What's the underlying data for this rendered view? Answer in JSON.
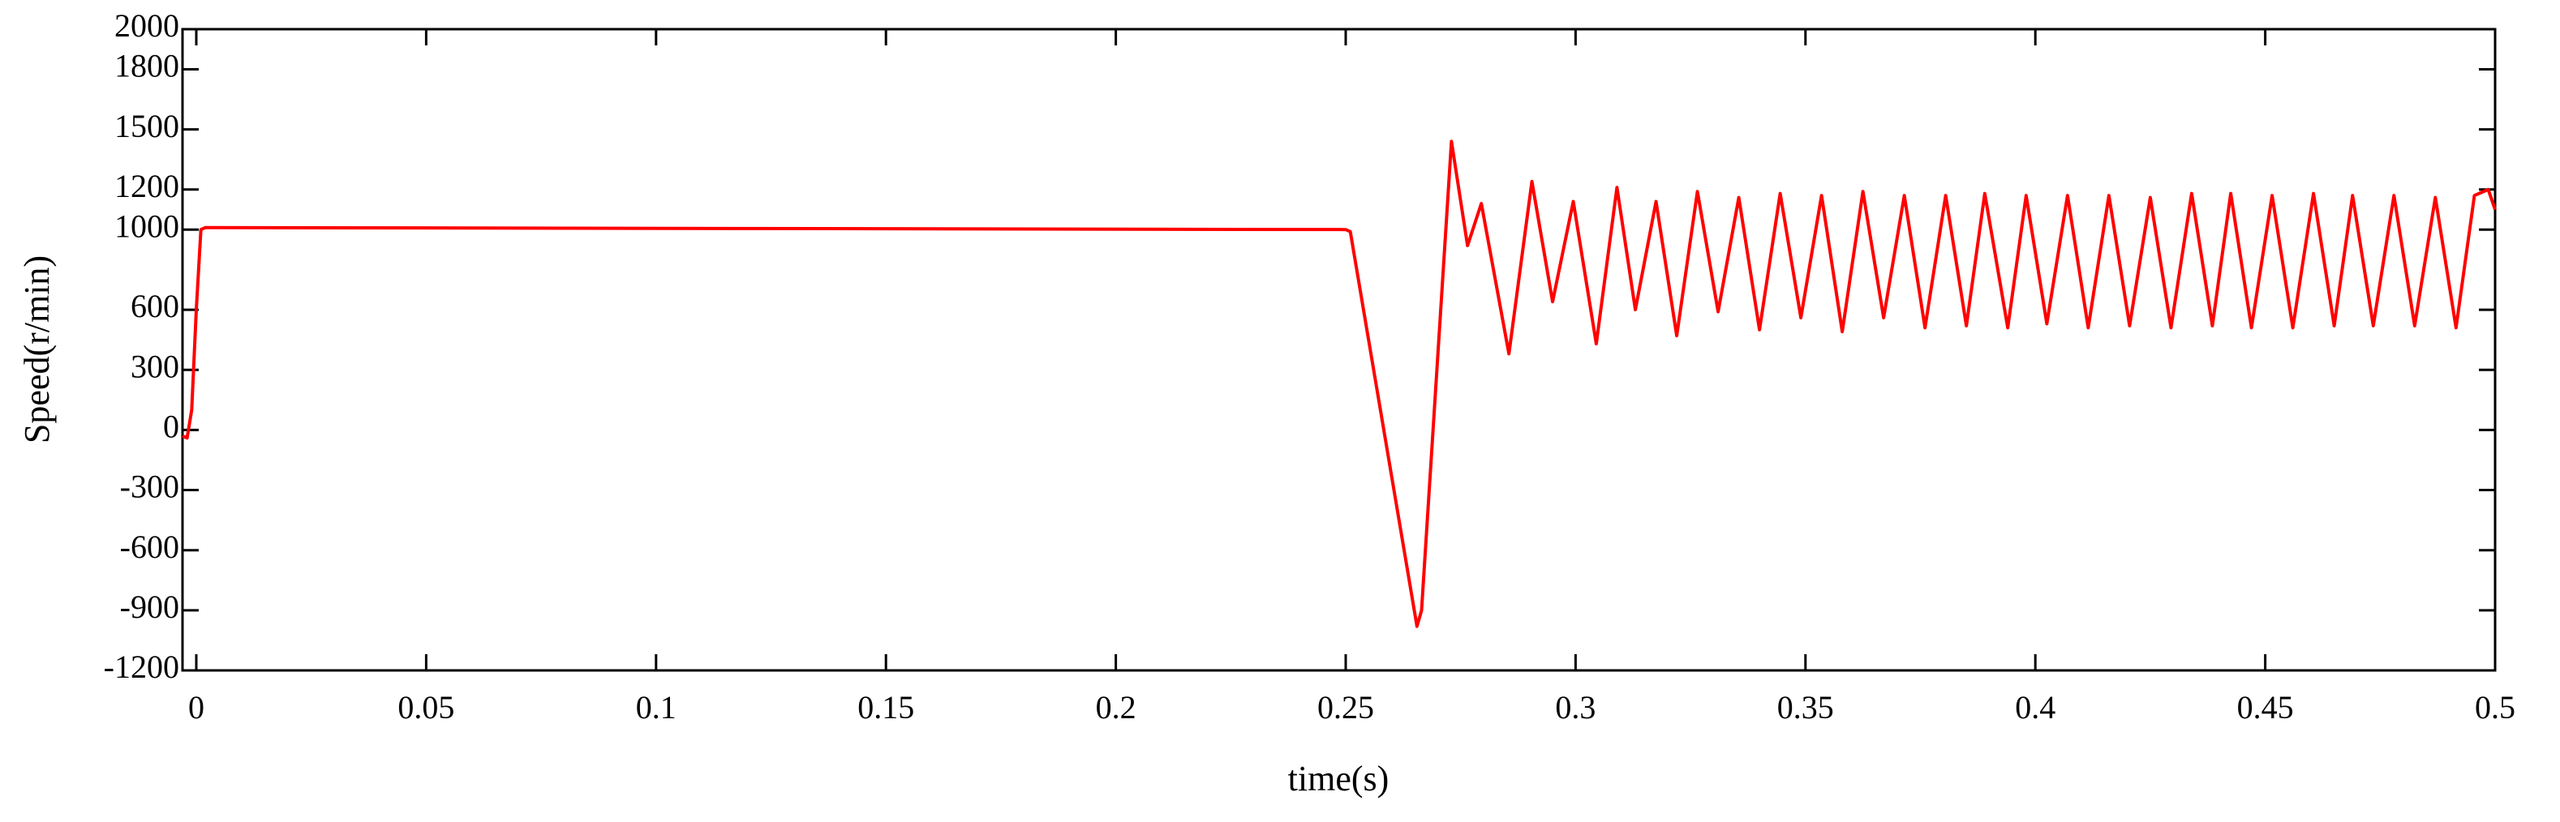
{
  "chart_data": {
    "type": "line",
    "x_label": "time(s)",
    "y_label": "Speed(r/min)",
    "xlim": [
      -0.003,
      0.5
    ],
    "xticks": [
      0,
      0.05,
      0.1,
      0.15,
      0.2,
      0.25,
      0.3,
      0.35,
      0.4,
      0.45,
      0.5
    ],
    "ylim": [
      -1200,
      2000
    ],
    "yticks": [
      -1200,
      -900,
      -600,
      -300,
      0,
      300,
      600,
      1000,
      1200,
      1500,
      1800,
      2000
    ],
    "grid": false,
    "x": [
      -0.003,
      -0.002,
      -0.001,
      0,
      0.001,
      0.002,
      0.25,
      0.251,
      0.2655,
      0.2665,
      0.273,
      0.2765,
      0.2795,
      0.2855,
      0.2905,
      0.295,
      0.2995,
      0.3045,
      0.309,
      0.313,
      0.3175,
      0.322,
      0.3265,
      0.331,
      0.3355,
      0.34,
      0.3445,
      0.349,
      0.3535,
      0.358,
      0.3625,
      0.367,
      0.3715,
      0.376,
      0.3805,
      0.385,
      0.389,
      0.394,
      0.398,
      0.4025,
      0.407,
      0.4115,
      0.416,
      0.4205,
      0.425,
      0.4295,
      0.434,
      0.4385,
      0.4425,
      0.447,
      0.4515,
      0.456,
      0.4605,
      0.465,
      0.469,
      0.4735,
      0.478,
      0.4825,
      0.487,
      0.4915,
      0.4955,
      0.4985,
      0.5
    ],
    "series": [
      {
        "name": "Speed",
        "color": "#ff0000",
        "values": [
          -30,
          -40,
          100,
          600,
          1000,
          1010,
          1000,
          990,
          -980,
          -900,
          1440,
          920,
          1130,
          380,
          1240,
          640,
          1140,
          430,
          1210,
          600,
          1140,
          470,
          1190,
          590,
          1160,
          500,
          1180,
          560,
          1170,
          490,
          1190,
          560,
          1170,
          510,
          1170,
          520,
          1180,
          510,
          1170,
          530,
          1170,
          510,
          1170,
          520,
          1160,
          510,
          1180,
          520,
          1180,
          510,
          1170,
          510,
          1180,
          520,
          1170,
          520,
          1170,
          520,
          1160,
          510,
          1170,
          1200,
          1100
        ]
      }
    ]
  }
}
